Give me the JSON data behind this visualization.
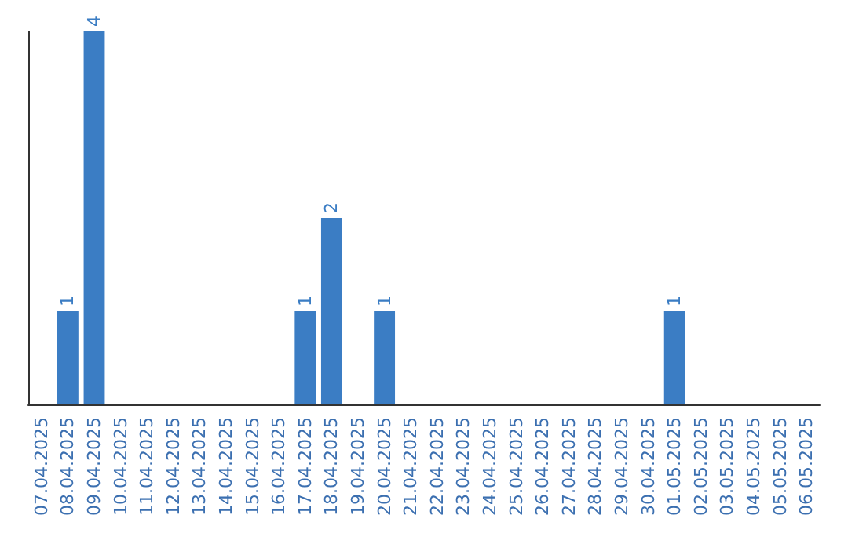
{
  "chart_data": {
    "type": "bar",
    "categories": [
      "07.04.2025",
      "08.04.2025",
      "09.04.2025",
      "10.04.2025",
      "11.04.2025",
      "12.04.2025",
      "13.04.2025",
      "14.04.2025",
      "15.04.2025",
      "16.04.2025",
      "17.04.2025",
      "18.04.2025",
      "19.04.2025",
      "20.04.2025",
      "21.04.2025",
      "22.04.2025",
      "23.04.2025",
      "24.04.2025",
      "25.04.2025",
      "26.04.2025",
      "27.04.2025",
      "28.04.2025",
      "29.04.2025",
      "30.04.2025",
      "01.05.2025",
      "02.05.2025",
      "03.05.2025",
      "04.05.2025",
      "05.05.2025",
      "06.05.2025"
    ],
    "values": [
      0,
      1,
      4,
      0,
      0,
      0,
      0,
      0,
      0,
      0,
      1,
      2,
      0,
      1,
      0,
      0,
      0,
      0,
      0,
      0,
      0,
      0,
      0,
      0,
      1,
      0,
      0,
      0,
      0,
      0
    ],
    "value_labels": [
      null,
      "1",
      "4",
      null,
      null,
      null,
      null,
      null,
      null,
      null,
      "1",
      "2",
      null,
      "1",
      null,
      null,
      null,
      null,
      null,
      null,
      null,
      null,
      null,
      null,
      "1",
      null,
      null,
      null,
      null,
      null
    ],
    "color": "#3b7dc4",
    "tick_labels": "x",
    "grid": false
  }
}
